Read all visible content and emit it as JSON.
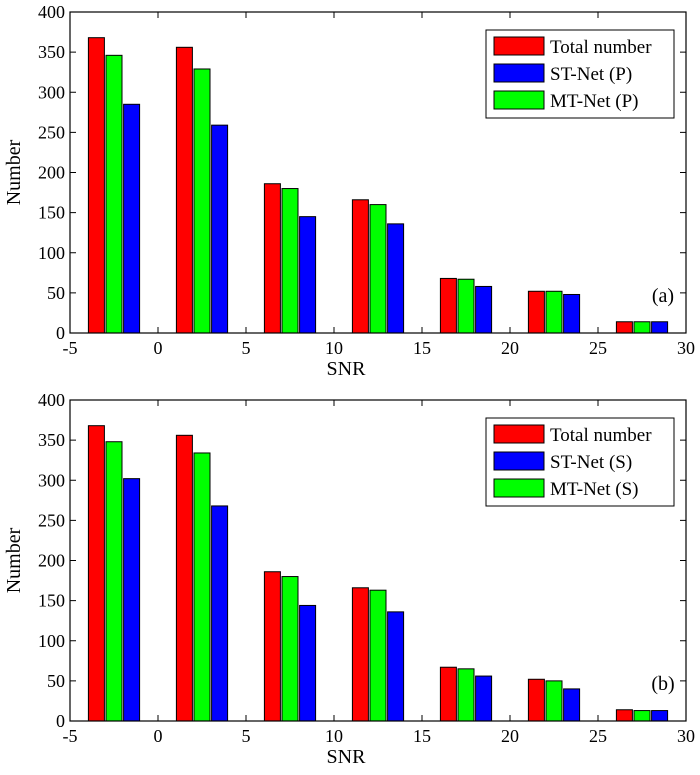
{
  "chart_data": [
    {
      "type": "bar",
      "panel_label": "(a)",
      "xlabel": "SNR",
      "ylabel": "Number",
      "xlim": [
        -5,
        30
      ],
      "ylim": [
        0,
        400
      ],
      "xticks": [
        -5,
        0,
        5,
        10,
        15,
        20,
        25,
        30
      ],
      "yticks": [
        0,
        50,
        100,
        150,
        200,
        250,
        300,
        350,
        400
      ],
      "legend_position": "top-right",
      "series": [
        {
          "name": "Total number",
          "color": "#ff0000",
          "x": [
            -3.5,
            1.5,
            6.5,
            11.5,
            16.5,
            21.5,
            26.5
          ],
          "values": [
            368,
            356,
            186,
            166,
            68,
            52,
            14
          ]
        },
        {
          "name": "ST-Net (P)",
          "color": "#0000ff",
          "x": [
            -1.5,
            3.5,
            8.5,
            13.5,
            18.5,
            23.5,
            28.5
          ],
          "values": [
            285,
            259,
            145,
            136,
            58,
            48,
            14
          ]
        },
        {
          "name": "MT-Net (P)",
          "color": "#00ff00",
          "x": [
            -2.5,
            2.5,
            7.5,
            12.5,
            17.5,
            22.5,
            27.5
          ],
          "values": [
            346,
            329,
            180,
            160,
            67,
            52,
            14
          ]
        }
      ]
    },
    {
      "type": "bar",
      "panel_label": "(b)",
      "xlabel": "SNR",
      "ylabel": "Number",
      "xlim": [
        -5,
        30
      ],
      "ylim": [
        0,
        400
      ],
      "xticks": [
        -5,
        0,
        5,
        10,
        15,
        20,
        25,
        30
      ],
      "yticks": [
        0,
        50,
        100,
        150,
        200,
        250,
        300,
        350,
        400
      ],
      "legend_position": "top-right",
      "series": [
        {
          "name": "Total number",
          "color": "#ff0000",
          "x": [
            -3.5,
            1.5,
            6.5,
            11.5,
            16.5,
            21.5,
            26.5
          ],
          "values": [
            368,
            356,
            186,
            166,
            67,
            52,
            14
          ]
        },
        {
          "name": "ST-Net (S)",
          "color": "#0000ff",
          "x": [
            -1.5,
            3.5,
            8.5,
            13.5,
            18.5,
            23.5,
            28.5
          ],
          "values": [
            302,
            268,
            144,
            136,
            56,
            40,
            13
          ]
        },
        {
          "name": "MT-Net (S)",
          "color": "#00ff00",
          "x": [
            -2.5,
            2.5,
            7.5,
            12.5,
            17.5,
            22.5,
            27.5
          ],
          "values": [
            348,
            334,
            180,
            163,
            65,
            50,
            13
          ]
        }
      ]
    }
  ]
}
